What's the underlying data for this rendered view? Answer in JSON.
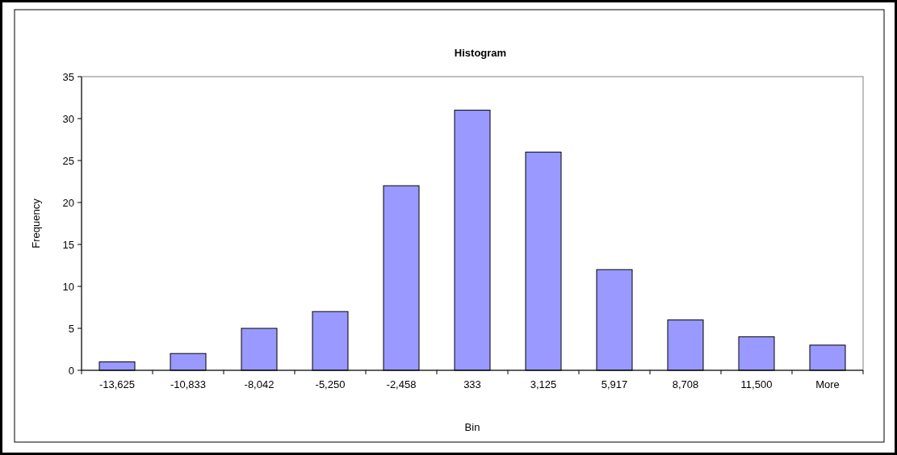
{
  "chart_data": {
    "type": "bar",
    "title": "Histogram",
    "xlabel": "Bin",
    "ylabel": "Frequency",
    "categories": [
      "-13,625",
      "-10,833",
      "-8,042",
      "-5,250",
      "-2,458",
      "333",
      "3,125",
      "5,917",
      "8,708",
      "11,500",
      "More"
    ],
    "values": [
      1,
      2,
      5,
      7,
      22,
      31,
      26,
      12,
      6,
      4,
      3
    ],
    "color": "#9999ff",
    "ylim": [
      0,
      35
    ],
    "yticks": [
      0,
      5,
      10,
      15,
      20,
      25,
      30,
      35
    ],
    "grid": false
  }
}
